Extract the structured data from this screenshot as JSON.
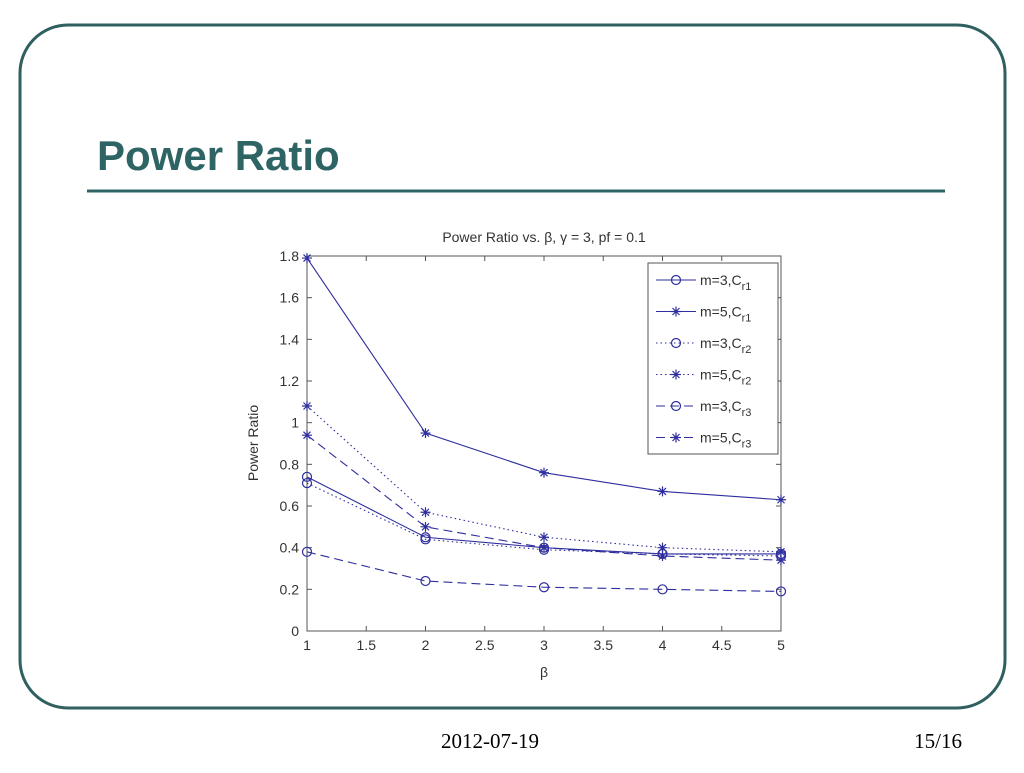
{
  "slide": {
    "title": "Power Ratio",
    "date": "2012-07-19",
    "page": "15/16"
  },
  "chart_data": {
    "type": "line",
    "title": "Power Ratio vs. β, γ = 3, pf = 0.1",
    "x_label": "β",
    "y_label": "Power Ratio",
    "x": [
      1,
      2,
      3,
      4,
      5
    ],
    "xlim": [
      1,
      5
    ],
    "xticks": [
      1,
      1.5,
      2,
      2.5,
      3,
      3.5,
      4,
      4.5,
      5
    ],
    "ylim": [
      0,
      1.8
    ],
    "yticks": [
      0,
      0.2,
      0.4,
      0.6,
      0.8,
      1,
      1.2,
      1.4,
      1.6,
      1.8
    ],
    "grid": false,
    "legend": "upper right",
    "series": [
      {
        "name": "m=3,Cr1",
        "color": "#2e2e9e",
        "dash": "solid",
        "marker": "circle",
        "values": [
          0.74,
          0.45,
          0.4,
          0.37,
          0.37
        ]
      },
      {
        "name": "m=5,Cr1",
        "color": "#2e2e9e",
        "dash": "solid",
        "marker": "star",
        "values": [
          1.79,
          0.95,
          0.76,
          0.67,
          0.63
        ]
      },
      {
        "name": "m=3,Cr2",
        "color": "#2e2e9e",
        "dash": "dotted",
        "marker": "circle",
        "values": [
          0.71,
          0.44,
          0.39,
          0.37,
          0.36
        ]
      },
      {
        "name": "m=5,Cr2",
        "color": "#2e2e9e",
        "dash": "dotted",
        "marker": "star",
        "values": [
          1.08,
          0.57,
          0.45,
          0.4,
          0.38
        ]
      },
      {
        "name": "m=3,Cr3",
        "color": "#2e2e9e",
        "dash": "dashed",
        "marker": "circle",
        "values": [
          0.38,
          0.24,
          0.21,
          0.2,
          0.19
        ]
      },
      {
        "name": "m=5,Cr3",
        "color": "#2e2e9e",
        "dash": "dashed",
        "marker": "star",
        "values": [
          0.94,
          0.5,
          0.4,
          0.36,
          0.34
        ]
      }
    ]
  }
}
